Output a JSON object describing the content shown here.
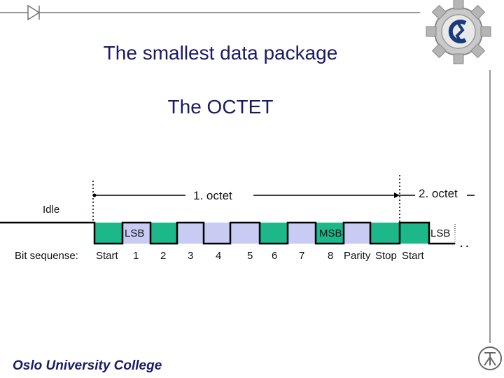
{
  "slide": {
    "title": "The smallest data package",
    "subtitle": "The OCTET",
    "footer": "Oslo University College"
  },
  "diagram": {
    "octet1_label": "1. octet",
    "octet2_label": "2. octet",
    "idle_label": "Idle",
    "lsb_label": "LSB",
    "msb_label": "MSB",
    "lsb2_label": "LSB",
    "bit_sequence_label": "Bit sequense:",
    "bit_labels": [
      "Start",
      "1",
      "2",
      "3",
      "4",
      "5",
      "6",
      "7",
      "8",
      "Parity",
      "Stop",
      "Start"
    ],
    "ellipsis": ". ."
  },
  "colors": {
    "title": "#1a1a66",
    "green_fill": "#1db88a",
    "blue_fill": "#c8ccf5",
    "signal_line": "#000000"
  }
}
